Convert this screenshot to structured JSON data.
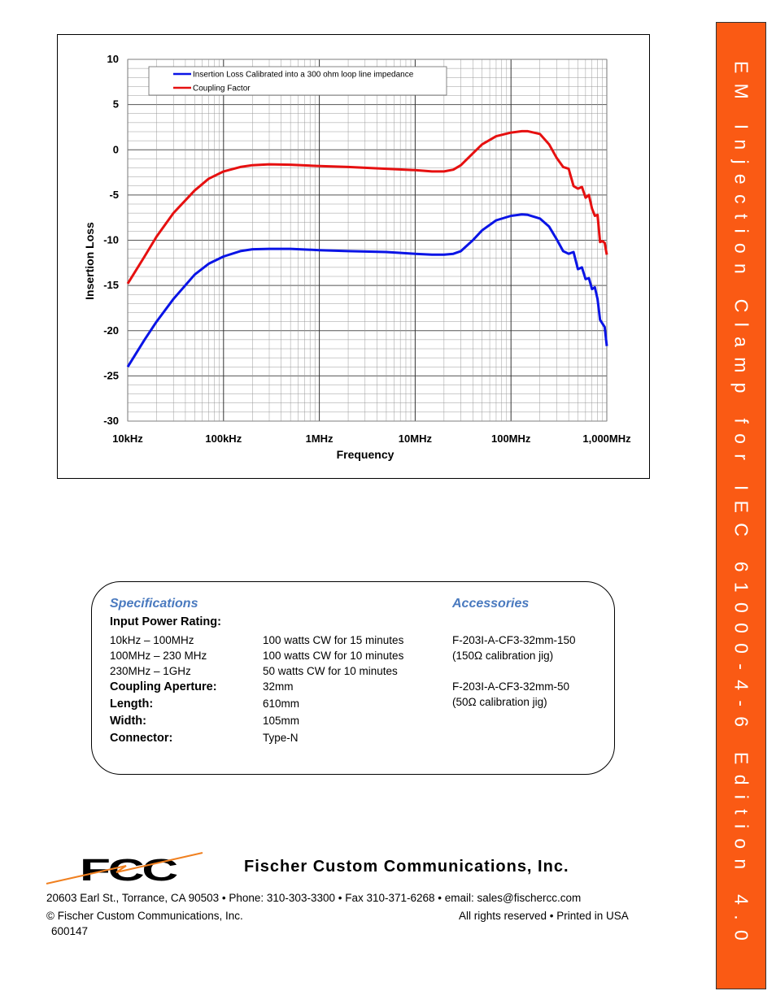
{
  "chart_data": {
    "type": "line",
    "xscale": "log",
    "xlim": [
      10000,
      1000000000
    ],
    "ylim": [
      -30,
      10
    ],
    "xlabel": "Frequency",
    "ylabel": "Insertion Loss",
    "xtick_values": [
      10000,
      100000,
      1000000,
      10000000,
      100000000,
      1000000000
    ],
    "xtick_labels": [
      "10kHz",
      "100kHz",
      "1MHz",
      "10MHz",
      "100MHz",
      "1,000MHz"
    ],
    "yticks": [
      10,
      5,
      0,
      -5,
      -10,
      -15,
      -20,
      -25,
      -30
    ],
    "grid": true,
    "legend_position": "top-left",
    "series": [
      {
        "name": "Insertion Loss Calibrated into a 300 ohm loop line impedance",
        "color": "#0a14e6",
        "x": [
          10000,
          15000,
          20000,
          30000,
          50000,
          70000,
          100000,
          150000,
          200000,
          300000,
          500000,
          1000000,
          2000000,
          5000000,
          10000000,
          15000000,
          20000000,
          25000000,
          30000000,
          40000000,
          50000000,
          70000000,
          100000000,
          130000000,
          150000000,
          200000000,
          250000000,
          300000000,
          350000000,
          400000000,
          450000000,
          500000000,
          550000000,
          600000000,
          650000000,
          700000000,
          750000000,
          800000000,
          850000000,
          900000000,
          950000000,
          1000000000
        ],
        "y": [
          -24,
          -21,
          -19,
          -16.5,
          -13.8,
          -12.6,
          -11.8,
          -11.2,
          -11,
          -10.95,
          -10.95,
          -11.1,
          -11.2,
          -11.3,
          -11.5,
          -11.6,
          -11.6,
          -11.5,
          -11.2,
          -10,
          -8.9,
          -7.8,
          -7.3,
          -7.15,
          -7.2,
          -7.6,
          -8.5,
          -9.9,
          -11.2,
          -11.5,
          -11.3,
          -13.2,
          -13,
          -14.3,
          -14.2,
          -15.4,
          -15.2,
          -16.5,
          -18.8,
          -19.2,
          -19.6,
          -21.7
        ]
      },
      {
        "name": "Coupling Factor",
        "color": "#e61010",
        "x": [
          10000,
          15000,
          20000,
          30000,
          50000,
          70000,
          100000,
          150000,
          200000,
          300000,
          500000,
          1000000,
          2000000,
          5000000,
          10000000,
          15000000,
          20000000,
          25000000,
          30000000,
          40000000,
          50000000,
          70000000,
          100000000,
          130000000,
          150000000,
          200000000,
          250000000,
          300000000,
          350000000,
          400000000,
          450000000,
          500000000,
          550000000,
          600000000,
          650000000,
          700000000,
          750000000,
          800000000,
          850000000,
          900000000,
          950000000,
          1000000000
        ],
        "y": [
          -14.8,
          -11.8,
          -9.6,
          -7,
          -4.5,
          -3.2,
          -2.4,
          -1.9,
          -1.7,
          -1.6,
          -1.65,
          -1.8,
          -1.9,
          -2.1,
          -2.25,
          -2.4,
          -2.4,
          -2.2,
          -1.7,
          -0.4,
          0.6,
          1.5,
          1.9,
          2.05,
          2.05,
          1.75,
          0.6,
          -0.9,
          -1.9,
          -2.1,
          -4,
          -4.3,
          -4.1,
          -5.3,
          -5,
          -6.5,
          -7.3,
          -7.2,
          -10.2,
          -10.1,
          -10.3,
          -11.6
        ]
      }
    ]
  },
  "banner": {
    "text": "EM Injection Clamp for IEC 61000-4-6 Edition 4.0"
  },
  "specs": {
    "heading": "Specifications",
    "power_label": "Input Power Rating:",
    "power_rows": [
      {
        "range": "10kHz – 100MHz",
        "value": "100 watts CW for 15 minutes"
      },
      {
        "range": "100MHz – 230 MHz",
        "value": "100 watts CW for 10 minutes"
      },
      {
        "range": "230MHz – 1GHz",
        "value": "50 watts CW for 10 minutes"
      }
    ],
    "rows": [
      {
        "label": "Coupling Aperture:",
        "value": "32mm"
      },
      {
        "label": "Length:",
        "value": "610mm"
      },
      {
        "label": "Width:",
        "value": "105mm"
      },
      {
        "label": "Connector:",
        "value": "Type-N"
      }
    ]
  },
  "accessories": {
    "heading": "Accessories",
    "items": [
      {
        "part": "F-203I-A-CF3-32mm-150",
        "desc": "(150Ω calibration jig)"
      },
      {
        "part": "F-203I-A-CF3-32mm-50",
        "desc": "(50Ω calibration jig)"
      }
    ]
  },
  "company": {
    "logo_text": "FCC",
    "name": "Fischer Custom Communications, Inc.",
    "address": "20603 Earl St., Torrance, CA 90503 • Phone: 310-303-3300 • Fax 310-371-6268 • email: sales@fischercc.com",
    "copyright": "© Fischer Custom Communications, Inc.",
    "rights": "All rights reserved • Printed in USA",
    "doc_number": "600147"
  }
}
